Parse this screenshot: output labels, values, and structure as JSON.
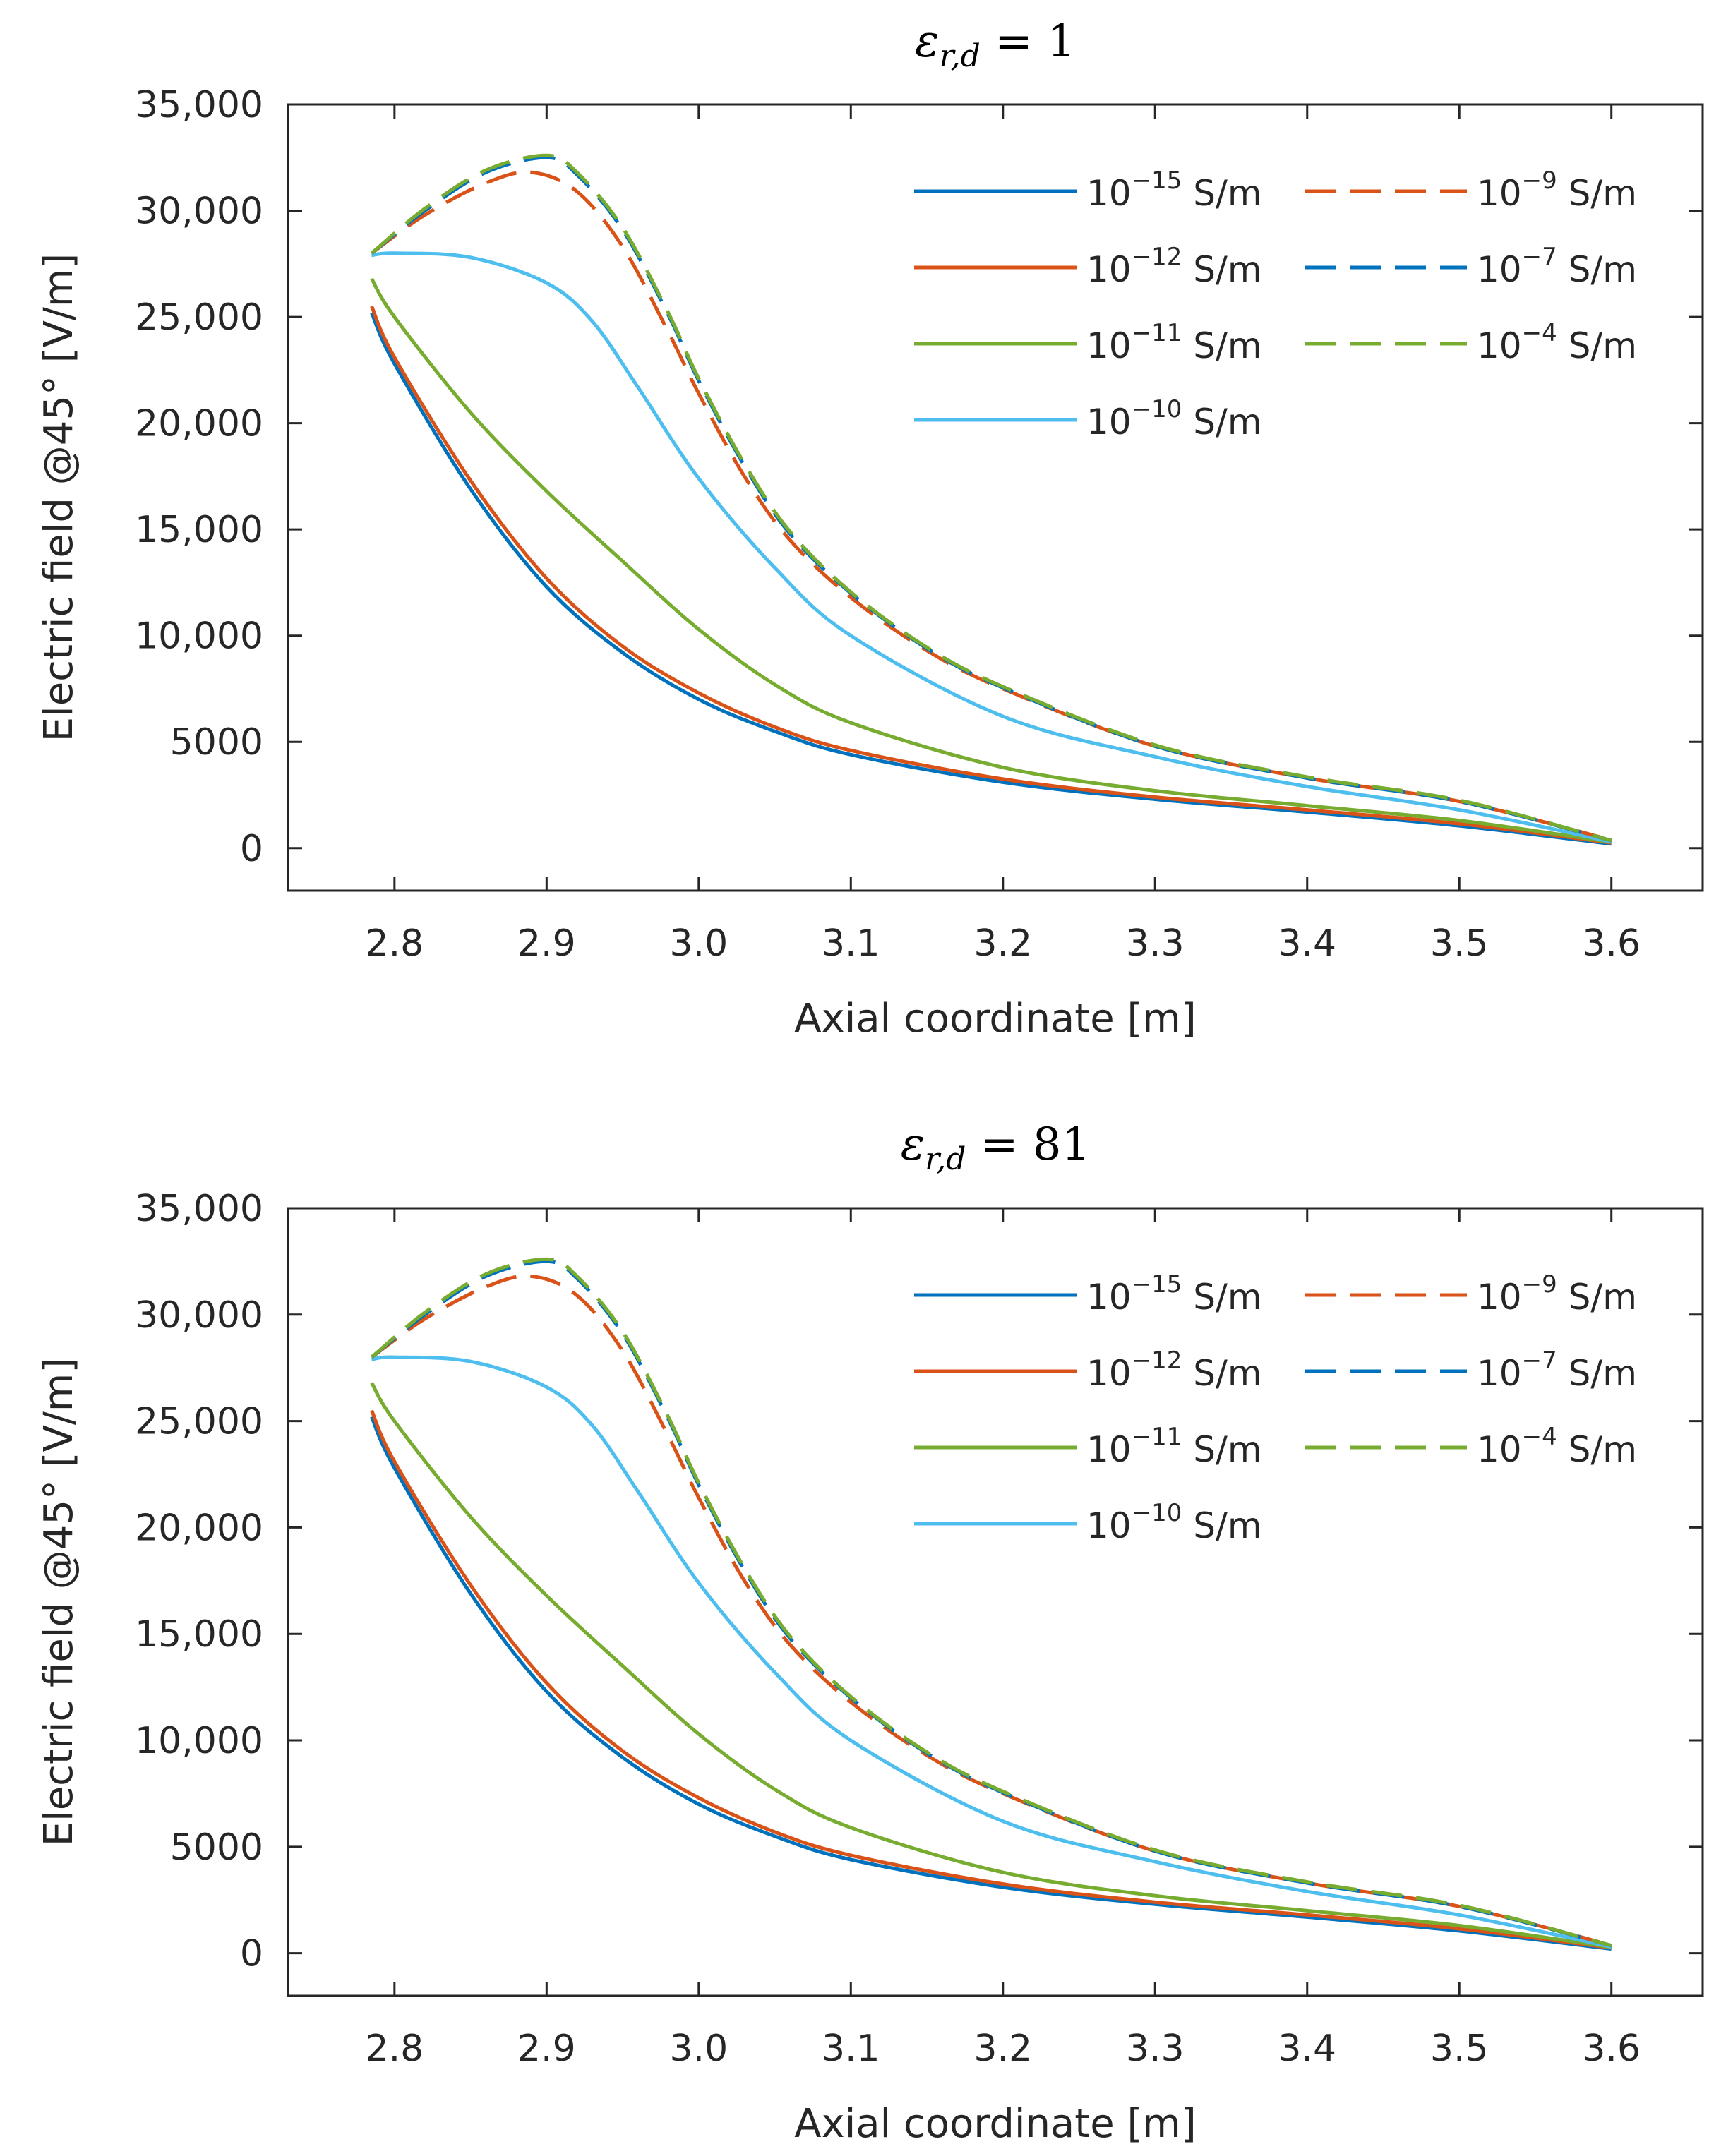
{
  "chart_data": [
    {
      "type": "line",
      "title": {
        "symbol": "ε",
        "subscript": "r,d",
        "operator": " = ",
        "value": "1"
      },
      "xlabel": "Axial coordinate [m]",
      "ylabel": "Electric field @45° [V/m]",
      "xlim": [
        2.73,
        3.66
      ],
      "ylim": [
        -2000,
        35000
      ],
      "xticks": [
        2.8,
        2.9,
        3.0,
        3.1,
        3.2,
        3.3,
        3.4,
        3.5,
        3.6
      ],
      "xticklabels": [
        "2.8",
        "2.9",
        "3.0",
        "3.1",
        "3.2",
        "3.3",
        "3.4",
        "3.5",
        "3.6"
      ],
      "yticks": [
        0,
        5000,
        10000,
        15000,
        20000,
        25000,
        30000,
        35000
      ],
      "yticklabels": [
        "0",
        "5000",
        "10,000",
        "15,000",
        "20,000",
        "25,000",
        "30,000",
        "35,000"
      ],
      "legend_position": "top-right",
      "legend_columns": 2,
      "series": [
        {
          "name": "10^-15 S/m",
          "base": "10",
          "exp": "−15",
          "unit": " S/m",
          "color": "#0072BD",
          "style": "solid",
          "x": [
            2.785,
            2.8,
            2.85,
            2.9,
            2.95,
            3.0,
            3.05,
            3.1,
            3.2,
            3.3,
            3.4,
            3.5,
            3.6
          ],
          "y": [
            25200,
            22800,
            16900,
            12300,
            9200,
            7000,
            5500,
            4400,
            3100,
            2300,
            1700,
            1050,
            200
          ]
        },
        {
          "name": "10^-12 S/m",
          "base": "10",
          "exp": "−12",
          "unit": " S/m",
          "color": "#D95319",
          "style": "solid",
          "x": [
            2.785,
            2.8,
            2.85,
            2.9,
            2.95,
            3.0,
            3.05,
            3.1,
            3.2,
            3.3,
            3.4,
            3.5,
            3.6
          ],
          "y": [
            25500,
            23100,
            17300,
            12700,
            9500,
            7300,
            5700,
            4600,
            3250,
            2400,
            1800,
            1150,
            250
          ]
        },
        {
          "name": "10^-11 S/m",
          "base": "10",
          "exp": "−11",
          "unit": " S/m",
          "color": "#77AC30",
          "style": "solid",
          "x": [
            2.785,
            2.8,
            2.85,
            2.9,
            2.95,
            3.0,
            3.05,
            3.1,
            3.2,
            3.3,
            3.4,
            3.5,
            3.6
          ],
          "y": [
            26800,
            25000,
            20500,
            16800,
            13500,
            10300,
            7700,
            5900,
            3800,
            2700,
            2000,
            1300,
            280
          ]
        },
        {
          "name": "10^-10 S/m",
          "base": "10",
          "exp": "−10",
          "unit": " S/m",
          "color": "#4DBEEE",
          "style": "solid",
          "x": [
            2.785,
            2.8,
            2.85,
            2.9,
            2.93,
            2.96,
            3.0,
            3.05,
            3.1,
            3.2,
            3.3,
            3.4,
            3.5,
            3.6
          ],
          "y": [
            27900,
            28000,
            27800,
            26600,
            24800,
            21700,
            17400,
            13200,
            10000,
            6200,
            4300,
            2900,
            1800,
            300
          ]
        },
        {
          "name": "10^-9 S/m",
          "base": "10",
          "exp": "−9",
          "unit": " S/m",
          "color": "#D95319",
          "style": "dashed",
          "x": [
            2.785,
            2.82,
            2.86,
            2.89,
            2.92,
            2.95,
            2.98,
            3.0,
            3.03,
            3.06,
            3.1,
            3.15,
            3.2,
            3.3,
            3.4,
            3.5,
            3.6
          ],
          "y": [
            28000,
            29800,
            31300,
            31800,
            30900,
            28300,
            24300,
            21400,
            17500,
            14500,
            11800,
            9300,
            7500,
            4800,
            3300,
            2200,
            380
          ]
        },
        {
          "name": "10^-7 S/m",
          "base": "10",
          "exp": "−7",
          "unit": " S/m",
          "color": "#0072BD",
          "style": "dashed",
          "x": [
            2.785,
            2.82,
            2.86,
            2.9,
            2.92,
            2.95,
            2.98,
            3.0,
            3.03,
            3.06,
            3.1,
            3.15,
            3.2,
            3.3,
            3.4,
            3.5,
            3.6
          ],
          "y": [
            28000,
            30000,
            31800,
            32500,
            31700,
            29100,
            25100,
            22000,
            18000,
            14800,
            12000,
            9400,
            7550,
            4800,
            3300,
            2200,
            360
          ]
        },
        {
          "name": "10^-4 S/m",
          "base": "10",
          "exp": "−4",
          "unit": " S/m",
          "color": "#77AC30",
          "style": "dashed",
          "x": [
            2.785,
            2.82,
            2.86,
            2.9,
            2.92,
            2.95,
            2.98,
            3.0,
            3.03,
            3.06,
            3.1,
            3.15,
            3.2,
            3.3,
            3.4,
            3.5,
            3.6
          ],
          "y": [
            28000,
            30100,
            31900,
            32600,
            31800,
            29200,
            25200,
            22100,
            18100,
            14900,
            12050,
            9450,
            7600,
            4850,
            3350,
            2250,
            360
          ]
        }
      ]
    },
    {
      "type": "line",
      "title": {
        "symbol": "ε",
        "subscript": "r,d",
        "operator": " = ",
        "value": "81"
      },
      "xlabel": "Axial coordinate [m]",
      "ylabel": "Electric field @45° [V/m]",
      "xlim": [
        2.73,
        3.66
      ],
      "ylim": [
        -2000,
        35000
      ],
      "xticks": [
        2.8,
        2.9,
        3.0,
        3.1,
        3.2,
        3.3,
        3.4,
        3.5,
        3.6
      ],
      "xticklabels": [
        "2.8",
        "2.9",
        "3.0",
        "3.1",
        "3.2",
        "3.3",
        "3.4",
        "3.5",
        "3.6"
      ],
      "yticks": [
        0,
        5000,
        10000,
        15000,
        20000,
        25000,
        30000,
        35000
      ],
      "yticklabels": [
        "0",
        "5000",
        "10,000",
        "15,000",
        "20,000",
        "25,000",
        "30,000",
        "35,000"
      ],
      "legend_position": "top-right",
      "legend_columns": 2,
      "series": [
        {
          "name": "10^-15 S/m",
          "base": "10",
          "exp": "−15",
          "unit": " S/m",
          "color": "#0072BD",
          "style": "solid",
          "x": [
            2.785,
            2.8,
            2.85,
            2.9,
            2.95,
            3.0,
            3.05,
            3.1,
            3.2,
            3.3,
            3.4,
            3.5,
            3.6
          ],
          "y": [
            25200,
            22800,
            16900,
            12300,
            9200,
            7000,
            5500,
            4400,
            3100,
            2300,
            1700,
            1050,
            200
          ]
        },
        {
          "name": "10^-12 S/m",
          "base": "10",
          "exp": "−12",
          "unit": " S/m",
          "color": "#D95319",
          "style": "solid",
          "x": [
            2.785,
            2.8,
            2.85,
            2.9,
            2.95,
            3.0,
            3.05,
            3.1,
            3.2,
            3.3,
            3.4,
            3.5,
            3.6
          ],
          "y": [
            25500,
            23100,
            17300,
            12700,
            9500,
            7300,
            5700,
            4600,
            3250,
            2400,
            1800,
            1150,
            250
          ]
        },
        {
          "name": "10^-11 S/m",
          "base": "10",
          "exp": "−11",
          "unit": " S/m",
          "color": "#77AC30",
          "style": "solid",
          "x": [
            2.785,
            2.8,
            2.85,
            2.9,
            2.95,
            3.0,
            3.05,
            3.1,
            3.2,
            3.3,
            3.4,
            3.5,
            3.6
          ],
          "y": [
            26800,
            25000,
            20500,
            16800,
            13500,
            10300,
            7700,
            5900,
            3800,
            2700,
            2000,
            1300,
            280
          ]
        },
        {
          "name": "10^-10 S/m",
          "base": "10",
          "exp": "−10",
          "unit": " S/m",
          "color": "#4DBEEE",
          "style": "solid",
          "x": [
            2.785,
            2.8,
            2.85,
            2.9,
            2.93,
            2.96,
            3.0,
            3.05,
            3.1,
            3.2,
            3.3,
            3.4,
            3.5,
            3.6
          ],
          "y": [
            27900,
            28000,
            27800,
            26600,
            24800,
            21700,
            17400,
            13200,
            10000,
            6200,
            4300,
            2900,
            1800,
            300
          ]
        },
        {
          "name": "10^-9 S/m",
          "base": "10",
          "exp": "−9",
          "unit": " S/m",
          "color": "#D95319",
          "style": "dashed",
          "x": [
            2.785,
            2.82,
            2.86,
            2.89,
            2.92,
            2.95,
            2.98,
            3.0,
            3.03,
            3.06,
            3.1,
            3.15,
            3.2,
            3.3,
            3.4,
            3.5,
            3.6
          ],
          "y": [
            28000,
            29800,
            31300,
            31800,
            30900,
            28300,
            24300,
            21400,
            17500,
            14500,
            11800,
            9300,
            7500,
            4800,
            3300,
            2200,
            380
          ]
        },
        {
          "name": "10^-7 S/m",
          "base": "10",
          "exp": "−7",
          "unit": " S/m",
          "color": "#0072BD",
          "style": "dashed",
          "x": [
            2.785,
            2.82,
            2.86,
            2.9,
            2.92,
            2.95,
            2.98,
            3.0,
            3.03,
            3.06,
            3.1,
            3.15,
            3.2,
            3.3,
            3.4,
            3.5,
            3.6
          ],
          "y": [
            28000,
            30000,
            31800,
            32500,
            31700,
            29100,
            25100,
            22000,
            18000,
            14800,
            12000,
            9400,
            7550,
            4800,
            3300,
            2200,
            360
          ]
        },
        {
          "name": "10^-4 S/m",
          "base": "10",
          "exp": "−4",
          "unit": " S/m",
          "color": "#77AC30",
          "style": "dashed",
          "x": [
            2.785,
            2.82,
            2.86,
            2.9,
            2.92,
            2.95,
            2.98,
            3.0,
            3.03,
            3.06,
            3.1,
            3.15,
            3.2,
            3.3,
            3.4,
            3.5,
            3.6
          ],
          "y": [
            28000,
            30100,
            31900,
            32600,
            31800,
            29200,
            25200,
            22100,
            18100,
            14900,
            12050,
            9450,
            7600,
            4850,
            3350,
            2250,
            360
          ]
        }
      ]
    }
  ]
}
